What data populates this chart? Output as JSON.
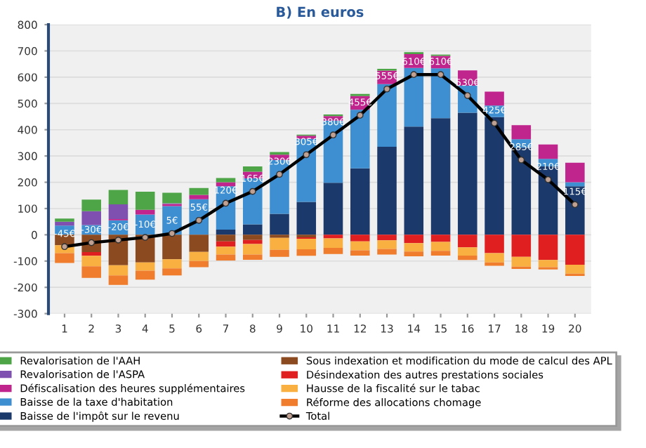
{
  "chart_data": {
    "type": "bar",
    "title": "B) En euros",
    "stacked": true,
    "categories": [
      "1",
      "2",
      "3",
      "4",
      "5",
      "6",
      "7",
      "8",
      "9",
      "10",
      "11",
      "12",
      "13",
      "14",
      "15",
      "16",
      "17",
      "18",
      "19",
      "20"
    ],
    "series": [
      {
        "name": "Baisse de l'impôt sur le revenu",
        "color": "#1b3a6b",
        "values": [
          0,
          0,
          0,
          0,
          0,
          0,
          20,
          40,
          80,
          125,
          198,
          253,
          335,
          412,
          444,
          465,
          448,
          332,
          260,
          185
        ]
      },
      {
        "name": "Baisse de la taxe d'habitation",
        "color": "#3d8fd1",
        "values": [
          35,
          37,
          55,
          77,
          109,
          135,
          165,
          175,
          205,
          240,
          237,
          223,
          239,
          223,
          190,
          103,
          44,
          32,
          29,
          15
        ]
      },
      {
        "name": "Défiscalisation des heures supplémentaires",
        "color": "#c0258e",
        "values": [
          0,
          0,
          5,
          18,
          8,
          17,
          15,
          25,
          20,
          12,
          17,
          52,
          51,
          53,
          47,
          58,
          53,
          53,
          55,
          74
        ]
      },
      {
        "name": "Revalorisation de l'ASPA",
        "color": "#8050b0",
        "values": [
          15,
          53,
          56,
          0,
          3,
          0,
          0,
          0,
          0,
          0,
          0,
          0,
          0,
          0,
          0,
          0,
          0,
          0,
          0,
          0
        ]
      },
      {
        "name": "Revalorisation de l'AAH",
        "color": "#4ea547",
        "values": [
          12,
          44,
          55,
          69,
          40,
          26,
          16,
          20,
          10,
          4,
          6,
          8,
          7,
          7,
          5,
          0,
          0,
          0,
          0,
          0
        ]
      },
      {
        "name": "Sous indexation et modification du mode de calcul des APL",
        "color": "#8b4a20",
        "values": [
          -40,
          -66,
          -116,
          -105,
          -93,
          -65,
          -25,
          -20,
          -12,
          -10,
          0,
          0,
          0,
          0,
          0,
          0,
          0,
          0,
          0,
          0
        ]
      },
      {
        "name": "Désindexation des autres prestations sociales",
        "color": "#e02020",
        "values": [
          0,
          -14,
          0,
          0,
          0,
          0,
          -20,
          -15,
          0,
          -5,
          -14,
          -25,
          -21,
          -32,
          -27,
          -48,
          -70,
          -84,
          -96,
          -114
        ]
      },
      {
        "name": "Hausse de la fiscalité sur le tabac",
        "color": "#f9b041",
        "values": [
          -30,
          -40,
          -39,
          -32,
          -35,
          -35,
          -30,
          -40,
          -45,
          -40,
          -36,
          -34,
          -33,
          -32,
          -34,
          -31,
          -35,
          -37,
          -27,
          -34
        ]
      },
      {
        "name": "Réforme des allocations chomage",
        "color": "#ef7d2d",
        "values": [
          -37,
          -44,
          -36,
          -34,
          -27,
          -23,
          -23,
          -20,
          -27,
          -25,
          -23,
          -20,
          -21,
          -18,
          -18,
          -17,
          -13,
          -9,
          -9,
          -9
        ]
      },
      {
        "name": "Total",
        "type": "line",
        "color": "#000000",
        "values": [
          -45,
          -30,
          -20,
          -10,
          5,
          55,
          120,
          165,
          230,
          305,
          380,
          455,
          555,
          610,
          610,
          530,
          425,
          285,
          210,
          115
        ],
        "value_labels": [
          "-45€",
          "-30€",
          "-20€",
          "-10€",
          "5€",
          "55€",
          "120€",
          "165€",
          "230€",
          "305€",
          "380€",
          "455€",
          "555€",
          "610€",
          "610€",
          "530€",
          "425€",
          "285€",
          "210€",
          "115€"
        ]
      }
    ],
    "marker": "circle",
    "ylim": [
      -300,
      800
    ],
    "yticks": [
      -300,
      -200,
      -100,
      0,
      100,
      200,
      300,
      400,
      500,
      600,
      700,
      800
    ],
    "grid": "y",
    "legend": "bottom"
  }
}
